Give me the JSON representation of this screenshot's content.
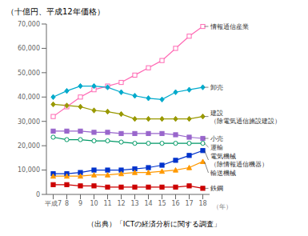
{
  "chart_data": {
    "type": "line",
    "title": "（十億円、平成12年価格）",
    "x_label": "（年）",
    "source": "（出典）「ICTの経済分析に関する調査」",
    "x": [
      7,
      8,
      9,
      10,
      11,
      12,
      13,
      14,
      15,
      16,
      17,
      18
    ],
    "xlim": [
      6.5,
      18.5
    ],
    "xticks": [
      {
        "value": 7,
        "label": "平成7"
      },
      8,
      9,
      10,
      11,
      12,
      13,
      14,
      15,
      16,
      17,
      18
    ],
    "ylim": [
      0,
      70000
    ],
    "yticks": [
      0,
      {
        "value": 10000,
        "label": "10,000"
      },
      {
        "value": 20000,
        "label": "20,000"
      },
      {
        "value": 30000,
        "label": "30,000"
      },
      {
        "value": 40000,
        "label": "40,000"
      },
      {
        "value": 50000,
        "label": "50,000"
      },
      {
        "value": 60000,
        "label": "60,000"
      },
      {
        "value": 70000,
        "label": "70,000"
      }
    ],
    "grid": false,
    "series": [
      {
        "name": "情報通信産業",
        "color": "#ff69b4",
        "marker": "square_open",
        "values": [
          32000,
          36000,
          40000,
          43000,
          44500,
          46000,
          49000,
          52000,
          55000,
          60000,
          65000,
          69000
        ]
      },
      {
        "name": "卸売",
        "color": "#00aacc",
        "marker": "diamond",
        "values": [
          40000,
          42500,
          44500,
          44500,
          44000,
          42000,
          40500,
          39500,
          39000,
          42000,
          43000,
          44000
        ]
      },
      {
        "name": "建設（除電気通信施設建設）",
        "color": "#999900",
        "marker": "diamond",
        "values": [
          37000,
          36500,
          36000,
          34500,
          34000,
          33000,
          31000,
          31000,
          31000,
          31000,
          31000,
          32000
        ]
      },
      {
        "name": "小売",
        "color": "#9966cc",
        "marker": "square",
        "values": [
          26000,
          26000,
          26000,
          25500,
          25500,
          25000,
          25000,
          25000,
          25000,
          24500,
          23500,
          23000
        ]
      },
      {
        "name": "運輸",
        "color": "#009966",
        "marker": "circle_open",
        "values": [
          23500,
          22500,
          22500,
          22000,
          22000,
          21500,
          21000,
          21000,
          21000,
          21000,
          21000,
          21000
        ]
      },
      {
        "name": "電気機械（除情報通信機器）",
        "color": "#0033cc",
        "marker": "square",
        "values": [
          8500,
          8500,
          9000,
          10000,
          10000,
          10000,
          10500,
          11000,
          12000,
          14000,
          16000,
          18000
        ]
      },
      {
        "name": "輸送機械",
        "color": "#ff9900",
        "marker": "triangle",
        "values": [
          7500,
          7500,
          7500,
          8000,
          8000,
          8500,
          9000,
          9000,
          9500,
          10000,
          11000,
          13500
        ]
      },
      {
        "name": "鉄鋼",
        "color": "#cc0000",
        "marker": "square",
        "values": [
          4000,
          4000,
          3500,
          3500,
          3000,
          3000,
          3000,
          3000,
          3000,
          3000,
          3500,
          2500
        ]
      }
    ]
  }
}
